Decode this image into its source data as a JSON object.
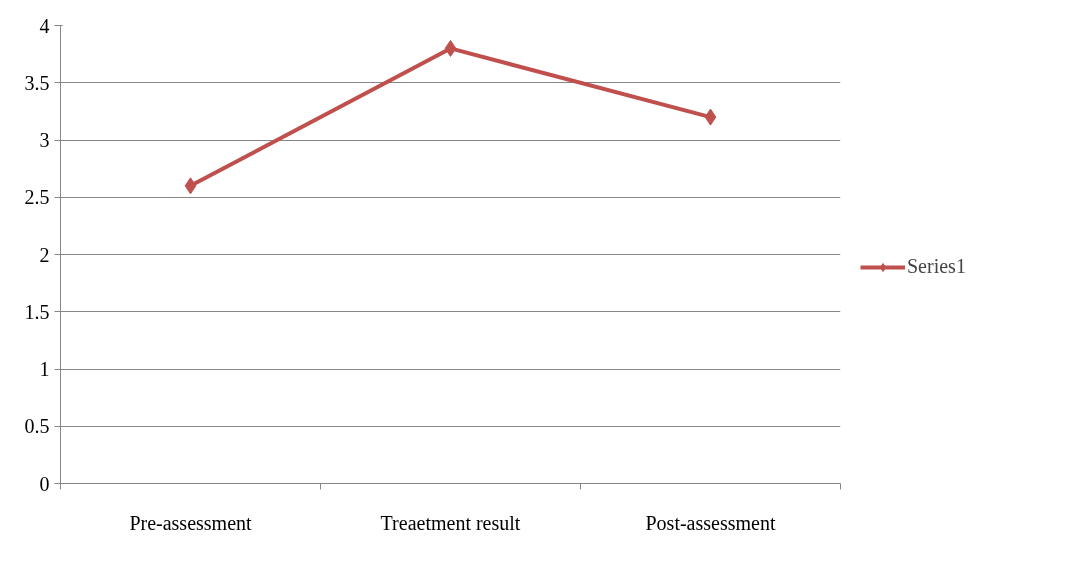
{
  "chart_data": {
    "type": "line",
    "categories": [
      "Pre-assessment",
      "Treaetment result",
      "Post-assessment"
    ],
    "series": [
      {
        "name": "Series1",
        "color": "#c0504d",
        "values": [
          2.6,
          3.8,
          3.2
        ]
      }
    ],
    "ylim": [
      0,
      4
    ],
    "yticks": [
      0,
      0.5,
      1,
      1.5,
      2,
      2.5,
      3,
      3.5,
      4
    ],
    "grid": "y",
    "legend": "right",
    "marker": "diamond",
    "line_style": "solid"
  }
}
